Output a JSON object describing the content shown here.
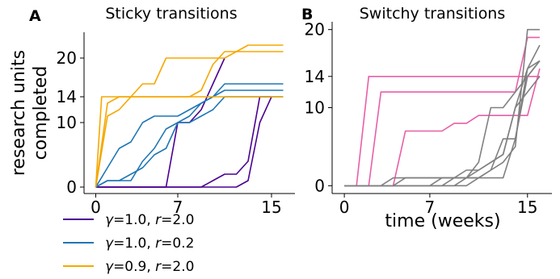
{
  "chart_data": [
    {
      "type": "line",
      "panel_letter": "A",
      "title": "Sticky transitions",
      "ylabel": [
        "research units",
        "completed"
      ],
      "xlabel": "",
      "xlim": [
        -1,
        17
      ],
      "ylim": [
        -1,
        24
      ],
      "xticks": [
        0,
        7,
        15
      ],
      "yticks": [
        0,
        10,
        20
      ],
      "highlight_ytick": {
        "value": 14,
        "label": "14",
        "color": "#ff0000"
      },
      "legend": [
        {
          "label_parts": [
            "γ",
            "=1.0, ",
            "r",
            "=2.0"
          ],
          "color": "#4b0092"
        },
        {
          "label_parts": [
            "γ",
            "=1.0, ",
            "r",
            "=0.2"
          ],
          "color": "#1f77b4"
        },
        {
          "label_parts": [
            "γ",
            "=0.9, ",
            "r",
            "=2.0"
          ],
          "color": "#f5a800"
        }
      ],
      "series": [
        {
          "color": "#4b0092",
          "x": [
            0,
            1,
            2,
            3,
            4,
            5,
            6,
            7,
            8,
            9,
            10,
            11
          ],
          "y": [
            0,
            0,
            0,
            0,
            0,
            0,
            0,
            10,
            10,
            12,
            16,
            20
          ]
        },
        {
          "color": "#4b0092",
          "x": [
            0,
            1,
            2,
            3,
            4,
            5,
            6,
            7,
            8,
            9,
            10,
            11,
            12,
            13,
            14,
            15
          ],
          "y": [
            0,
            0,
            0,
            0,
            0,
            0,
            0,
            0,
            0,
            0,
            1,
            2,
            2,
            4,
            14,
            14
          ]
        },
        {
          "color": "#4b0092",
          "x": [
            0,
            1,
            2,
            3,
            4,
            5,
            6,
            7,
            8,
            9,
            10,
            11,
            12,
            13,
            14,
            15
          ],
          "y": [
            0,
            0,
            0,
            0,
            0,
            0,
            0,
            0,
            0,
            0,
            0,
            0,
            0,
            1,
            10,
            14
          ]
        },
        {
          "color": "#1f77b4",
          "x": [
            0,
            1,
            2,
            3,
            4,
            5,
            6,
            7,
            8,
            9,
            10,
            11,
            12,
            13,
            14,
            15,
            16
          ],
          "y": [
            0,
            3,
            6,
            7,
            10,
            11,
            11,
            11,
            12,
            13,
            14,
            15,
            15,
            15,
            15,
            15,
            15
          ]
        },
        {
          "color": "#1f77b4",
          "x": [
            0,
            1,
            2,
            3,
            4,
            5,
            6,
            7,
            8,
            9,
            10,
            11,
            12,
            13,
            14,
            15,
            16
          ],
          "y": [
            0,
            1,
            1,
            1,
            4,
            6,
            9,
            10,
            10,
            11,
            12,
            14,
            14,
            14,
            14,
            14,
            14
          ]
        },
        {
          "color": "#1f77b4",
          "x": [
            0,
            1,
            2,
            3,
            4,
            5,
            6,
            7,
            8,
            9,
            10,
            11,
            12,
            13,
            14,
            15,
            16
          ],
          "y": [
            0,
            1,
            1,
            2,
            3,
            5,
            6,
            10,
            11,
            13,
            14,
            16,
            16,
            16,
            16,
            16,
            16
          ]
        },
        {
          "color": "#f5a800",
          "x": [
            0,
            0.5,
            16
          ],
          "y": [
            0,
            14,
            14
          ]
        },
        {
          "color": "#f5a800",
          "x": [
            0,
            1,
            2,
            3,
            4,
            5,
            6,
            7,
            8,
            9,
            10,
            11,
            12,
            13,
            14,
            15,
            16
          ],
          "y": [
            0,
            13,
            14,
            14,
            14,
            14,
            14,
            14,
            14,
            15,
            19,
            21,
            21,
            21,
            21,
            21,
            21
          ]
        },
        {
          "color": "#f5a800",
          "x": [
            0,
            1,
            2,
            3,
            4,
            5,
            6,
            7,
            8,
            9,
            10,
            11,
            12,
            13,
            14,
            15,
            16
          ],
          "y": [
            0,
            11,
            12,
            14,
            16,
            16,
            20,
            20,
            20,
            20,
            20,
            20,
            21,
            22,
            22,
            22,
            22
          ]
        }
      ]
    },
    {
      "type": "line",
      "panel_letter": "B",
      "title": "Switchy transitions",
      "xlabel": "time (weeks)",
      "ylabel": "",
      "xlim": [
        -1,
        17
      ],
      "ylim": [
        -1,
        21
      ],
      "xticks": [
        0,
        7,
        15
      ],
      "yticks": [
        0,
        10,
        20
      ],
      "highlight_ytick": {
        "value": 14,
        "label": "14",
        "color": "#ff0000"
      },
      "series": [
        {
          "color": "#e85fa8",
          "x": [
            0,
            1,
            2,
            16
          ],
          "y": [
            0,
            0,
            14,
            14
          ]
        },
        {
          "color": "#e85fa8",
          "x": [
            0,
            1,
            2,
            3,
            4,
            5,
            6,
            7,
            8,
            9,
            10,
            11,
            12,
            13,
            14,
            15,
            16
          ],
          "y": [
            0,
            0,
            0,
            12,
            12,
            12,
            12,
            12,
            12,
            12,
            12,
            12,
            12,
            12,
            12,
            19,
            19
          ]
        },
        {
          "color": "#e85fa8",
          "x": [
            0,
            1,
            2,
            3,
            4,
            5,
            6,
            7,
            8,
            9,
            10,
            11,
            12,
            13,
            14,
            15,
            16
          ],
          "y": [
            0,
            0,
            0,
            0,
            0,
            7,
            7,
            7,
            7,
            8,
            8,
            9,
            9,
            9,
            9,
            9,
            15
          ]
        },
        {
          "color": "#808080",
          "x": [
            0,
            1,
            2,
            3,
            4,
            5,
            6,
            7,
            8,
            9,
            10,
            11,
            12,
            13,
            14,
            15,
            16
          ],
          "y": [
            0,
            0,
            0,
            0,
            0,
            0,
            0,
            0,
            0,
            1,
            1,
            1,
            2,
            3,
            5,
            20,
            20
          ]
        },
        {
          "color": "#808080",
          "x": [
            0,
            1,
            2,
            3,
            4,
            5,
            6,
            7,
            8,
            9,
            10,
            11,
            12,
            13,
            14,
            15,
            16
          ],
          "y": [
            0,
            0,
            0,
            0,
            0,
            0,
            0,
            0,
            1,
            1,
            2,
            2,
            3,
            4,
            10,
            15,
            18
          ]
        },
        {
          "color": "#808080",
          "x": [
            0,
            1,
            2,
            3,
            4,
            5,
            6,
            7,
            8,
            9,
            10,
            11,
            12,
            13,
            14,
            15,
            16
          ],
          "y": [
            0,
            0,
            0,
            0,
            0,
            1,
            1,
            1,
            1,
            1,
            1,
            1,
            1,
            1,
            6,
            14,
            16
          ]
        },
        {
          "color": "#808080",
          "x": [
            0,
            1,
            2,
            3,
            4,
            5,
            6,
            7,
            8,
            9,
            10,
            11,
            12,
            13,
            14,
            15,
            16
          ],
          "y": [
            0,
            0,
            0,
            0,
            1,
            1,
            1,
            1,
            1,
            1,
            1,
            3,
            10,
            10,
            12,
            14,
            16
          ]
        },
        {
          "color": "#808080",
          "x": [
            0,
            1,
            2,
            3,
            4,
            5,
            6,
            7,
            8,
            9,
            10,
            11,
            12,
            13,
            14,
            15,
            16
          ],
          "y": [
            0,
            0,
            0,
            0,
            0,
            0,
            0,
            0,
            0,
            0,
            0,
            1,
            2,
            6,
            6,
            15,
            16
          ]
        },
        {
          "color": "#808080",
          "x": [
            0,
            1,
            2,
            3,
            4,
            5,
            6,
            7,
            8,
            9,
            10,
            11,
            12,
            13,
            14,
            15,
            16
          ],
          "y": [
            0,
            0,
            0,
            0,
            0,
            0,
            0,
            0,
            0,
            0,
            1,
            2,
            3,
            4,
            10,
            12,
            14
          ]
        }
      ]
    }
  ]
}
